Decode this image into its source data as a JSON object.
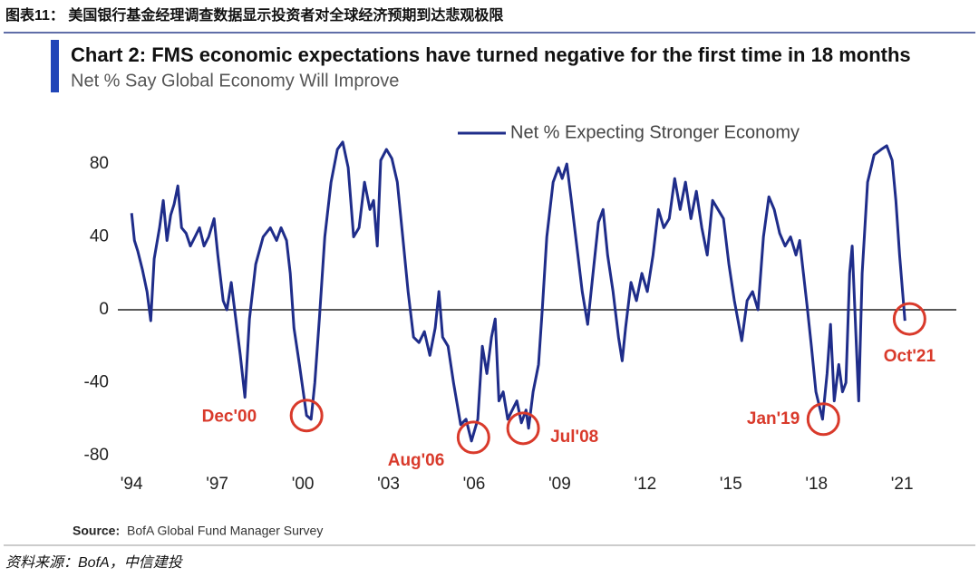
{
  "chart_data": {
    "type": "line",
    "figure_title": "图表11： 美国银行基金经理调查数据显示投资者对全球经济预期到达悲观极限",
    "title": "Chart 2: FMS economic expectations have turned negative for the first time in 18 months",
    "subtitle": "Net % Say Global Economy Will Improve",
    "source_label": "Source:",
    "source": "BofA Global Fund Manager Survey",
    "footer": "资料来源：BofA，中信建投",
    "xlim": [
      1993.2,
      2022.9
    ],
    "xticks": [
      {
        "value": 1994,
        "label": "'94"
      },
      {
        "value": 1997,
        "label": "'97"
      },
      {
        "value": 2000,
        "label": "'00"
      },
      {
        "value": 2003,
        "label": "'03"
      },
      {
        "value": 2006,
        "label": "'06"
      },
      {
        "value": 2009,
        "label": "'09"
      },
      {
        "value": 2012,
        "label": "'12"
      },
      {
        "value": 2015,
        "label": "'15"
      },
      {
        "value": 2018,
        "label": "'18"
      },
      {
        "value": 2021,
        "label": "'21"
      }
    ],
    "ylim": [
      -80,
      100
    ],
    "yticks": [
      -80,
      -40,
      0,
      40,
      80
    ],
    "grid": false,
    "legend": "top",
    "x": [
      1994.0,
      1994.1,
      1994.22,
      1994.38,
      1994.54,
      1994.67,
      1994.79,
      1994.98,
      1995.11,
      1995.24,
      1995.37,
      1995.49,
      1995.62,
      1995.75,
      1995.91,
      1996.06,
      1996.22,
      1996.38,
      1996.54,
      1996.7,
      1996.89,
      1997.02,
      1997.21,
      1997.34,
      1997.49,
      1997.65,
      1997.81,
      1997.97,
      1998.13,
      1998.35,
      1998.61,
      1998.86,
      1999.08,
      1999.24,
      1999.43,
      1999.56,
      1999.69,
      1999.88,
      2000.13,
      2000.29,
      2000.42,
      2000.58,
      2000.77,
      2000.99,
      2001.21,
      2001.4,
      2001.59,
      2001.78,
      2001.97,
      2002.16,
      2002.35,
      2002.48,
      2002.61,
      2002.73,
      2002.93,
      2003.12,
      2003.31,
      2003.5,
      2003.69,
      2003.88,
      2004.07,
      2004.26,
      2004.45,
      2004.64,
      2004.77,
      2004.9,
      2005.09,
      2005.28,
      2005.53,
      2005.72,
      2005.91,
      2006.13,
      2006.29,
      2006.45,
      2006.61,
      2006.74,
      2006.87,
      2007.02,
      2007.18,
      2007.34,
      2007.5,
      2007.66,
      2007.82,
      2007.91,
      2008.07,
      2008.26,
      2008.39,
      2008.55,
      2008.77,
      2008.96,
      2009.09,
      2009.25,
      2009.41,
      2009.6,
      2009.79,
      2009.98,
      2010.17,
      2010.36,
      2010.52,
      2010.68,
      2010.87,
      2011.06,
      2011.19,
      2011.31,
      2011.5,
      2011.69,
      2011.88,
      2012.07,
      2012.27,
      2012.46,
      2012.65,
      2012.84,
      2013.03,
      2013.22,
      2013.41,
      2013.6,
      2013.79,
      2013.98,
      2014.17,
      2014.36,
      2014.55,
      2014.74,
      2014.93,
      2015.12,
      2015.38,
      2015.57,
      2015.76,
      2015.95,
      2016.14,
      2016.33,
      2016.52,
      2016.71,
      2016.9,
      2017.09,
      2017.28,
      2017.41,
      2017.54,
      2017.67,
      2017.82,
      2017.98,
      2018.21,
      2018.37,
      2018.49,
      2018.62,
      2018.78,
      2018.91,
      2019.03,
      2019.16,
      2019.25,
      2019.48,
      2019.6,
      2019.79,
      2020.02,
      2020.27,
      2020.46,
      2020.65,
      2020.78,
      2020.91,
      2021.1
    ],
    "series": [
      {
        "name": "Net % Expecting Stronger Economy",
        "color": "#1f2d8a",
        "values": [
          53,
          38,
          32,
          22,
          10,
          -6,
          28,
          45,
          60,
          38,
          52,
          58,
          68,
          45,
          42,
          35,
          40,
          45,
          35,
          40,
          50,
          30,
          5,
          0,
          15,
          -5,
          -25,
          -48,
          -5,
          25,
          40,
          45,
          38,
          45,
          38,
          20,
          -10,
          -30,
          -58,
          -60,
          -40,
          -5,
          40,
          70,
          88,
          92,
          78,
          40,
          45,
          70,
          55,
          60,
          35,
          82,
          88,
          83,
          70,
          40,
          10,
          -15,
          -18,
          -12,
          -25,
          -10,
          10,
          -15,
          -20,
          -40,
          -63,
          -60,
          -72,
          -60,
          -20,
          -35,
          -15,
          -5,
          -50,
          -45,
          -60,
          -55,
          -50,
          -62,
          -55,
          -65,
          -45,
          -30,
          0,
          40,
          70,
          78,
          72,
          80,
          60,
          35,
          10,
          -8,
          20,
          48,
          55,
          30,
          10,
          -15,
          -28,
          -10,
          15,
          5,
          20,
          10,
          30,
          55,
          45,
          50,
          72,
          55,
          70,
          50,
          65,
          45,
          30,
          60,
          55,
          50,
          25,
          5,
          -17,
          5,
          10,
          0,
          40,
          62,
          55,
          42,
          35,
          40,
          30,
          38,
          20,
          2,
          -20,
          -45,
          -60,
          -35,
          -8,
          -50,
          -30,
          -45,
          -40,
          20,
          35,
          -50,
          20,
          70,
          85,
          88,
          90,
          82,
          60,
          30,
          -6
        ]
      }
    ],
    "annotations": [
      {
        "label": "Dec'00",
        "x": 2000.13,
        "y": -58,
        "color": "#d93a2b"
      },
      {
        "label": "Aug'06",
        "x": 2005.98,
        "y": -70,
        "color": "#d93a2b"
      },
      {
        "label": "Jul'08",
        "x": 2007.72,
        "y": -65,
        "color": "#d93a2b"
      },
      {
        "label": "Jan'19",
        "x": 2018.24,
        "y": -60,
        "color": "#d93a2b"
      },
      {
        "label": "Oct'21",
        "x": 2021.26,
        "y": -5,
        "color": "#d93a2b"
      }
    ]
  }
}
